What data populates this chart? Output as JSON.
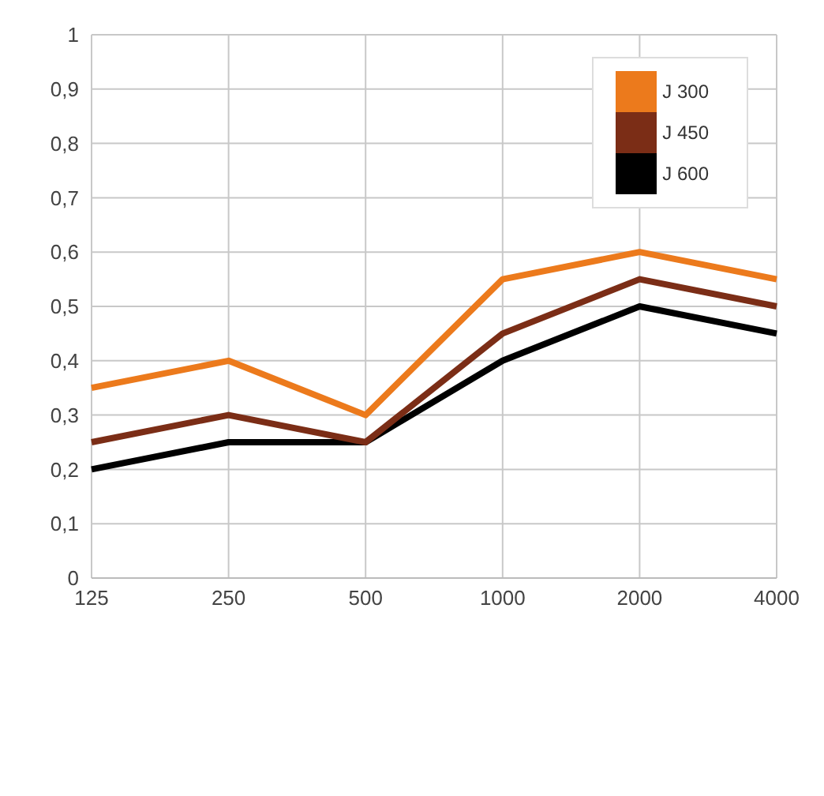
{
  "chart_data": {
    "type": "line",
    "categories": [
      "125",
      "250",
      "500",
      "1000",
      "2000",
      "4000"
    ],
    "series": [
      {
        "name": "J 600",
        "color": "#000000",
        "values": [
          0.2,
          0.25,
          0.25,
          0.4,
          0.5,
          0.45
        ]
      },
      {
        "name": "J 450",
        "color": "#7b2d16",
        "values": [
          0.25,
          0.3,
          0.25,
          0.45,
          0.55,
          0.5
        ]
      },
      {
        "name": "J 300",
        "color": "#ec7a1c",
        "values": [
          0.35,
          0.4,
          0.3,
          0.55,
          0.6,
          0.55
        ]
      }
    ],
    "ylim": [
      0,
      1
    ],
    "yticks": [
      {
        "value": 0,
        "label": "0"
      },
      {
        "value": 0.1,
        "label": "0,1"
      },
      {
        "value": 0.2,
        "label": "0,2"
      },
      {
        "value": 0.3,
        "label": "0,3"
      },
      {
        "value": 0.4,
        "label": "0,4"
      },
      {
        "value": 0.5,
        "label": "0,5"
      },
      {
        "value": 0.6,
        "label": "0,6"
      },
      {
        "value": 0.7,
        "label": "0,7"
      },
      {
        "value": 0.8,
        "label": "0,8"
      },
      {
        "value": 0.9,
        "label": "0,9"
      },
      {
        "value": 1,
        "label": "1"
      }
    ],
    "grid": true,
    "legend": "top right",
    "marker": "none"
  }
}
